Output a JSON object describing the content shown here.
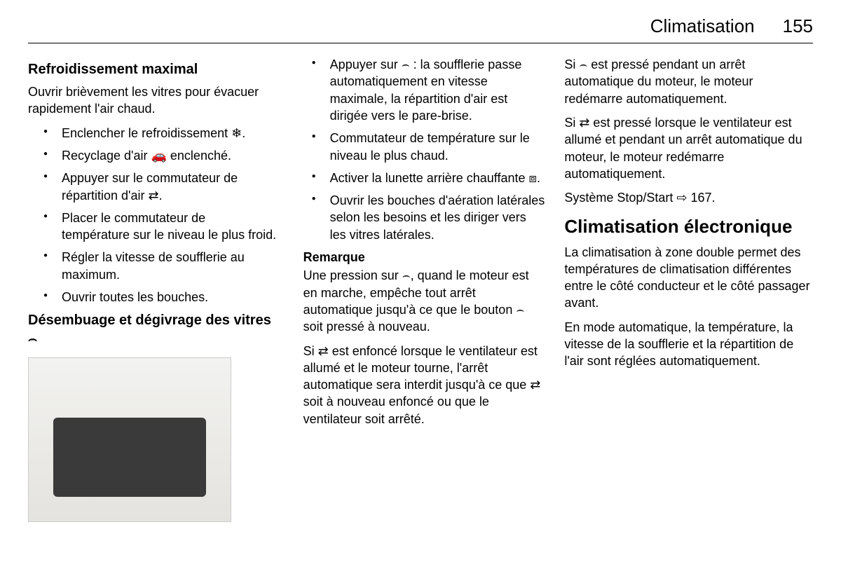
{
  "header": {
    "title": "Climatisation",
    "page": "155"
  },
  "col1": {
    "h1": "Refroidissement maximal",
    "intro": "Ouvrir brièvement les vitres pour évacuer rapidement l'air chaud.",
    "bullets": [
      "Enclencher le refroidissement ❄.",
      "Recyclage d'air 🚗 enclenché.",
      "Appuyer sur le commutateur de répartition d'air ⇄.",
      "Placer le commutateur de température sur le niveau le plus froid.",
      "Régler la vitesse de soufflerie au maximum.",
      "Ouvrir toutes les bouches."
    ],
    "h2": "Désembuage et dégivrage des vitres ⌢"
  },
  "col2": {
    "bullets": [
      "Appuyer sur ⌢ : la soufflerie passe automatiquement en vitesse maximale, la répartition d'air est dirigée vers le pare-brise.",
      "Commutateur de température sur le niveau le plus chaud.",
      "Activer la lunette arrière chauffante ⧈.",
      "Ouvrir les bouches d'aération latérales selon les besoins et les diriger vers les vitres latérales."
    ],
    "remarque_label": "Remarque",
    "remarque": "Une pression sur ⌢, quand le moteur est en marche, empêche tout arrêt automatique jusqu'à ce que le bouton ⌢ soit pressé à nouveau.",
    "p2": "Si ⇄ est enfoncé lorsque le ventilateur est allumé et le moteur tourne, l'arrêt automatique sera interdit jusqu'à ce que ⇄ soit à nouveau enfoncé ou que le ventilateur soit arrêté."
  },
  "col3": {
    "p1": "Si ⌢ est pressé pendant un arrêt automatique du moteur, le moteur redémarre automatiquement.",
    "p2": "Si ⇄ est pressé lorsque le ventilateur est allumé et pendant un arrêt automatique du moteur, le moteur redémarre automatiquement.",
    "p3": "Système Stop/Start ⇨ 167.",
    "h1": "Climatisation électronique",
    "p4": "La climatisation à zone double permet des températures de climatisation différentes entre le côté conducteur et le côté passager avant.",
    "p5": "En mode automatique, la température, la vitesse de la soufflerie et la répartition de l'air sont réglées automatiquement."
  }
}
